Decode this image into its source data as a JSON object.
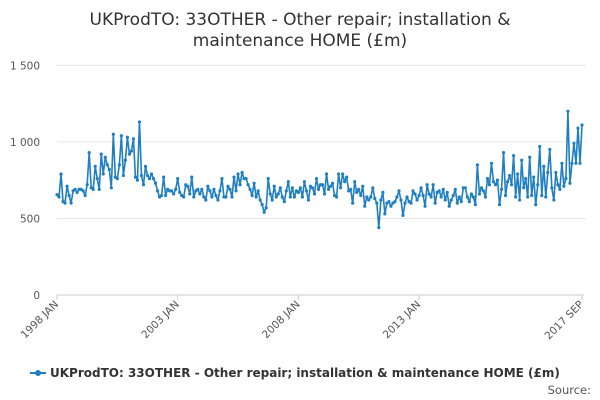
{
  "chart_data": {
    "type": "line",
    "title_lines": [
      "UKProdTO: 33OTHER - Other repair; installation &",
      "maintenance HOME (£m)"
    ],
    "ylim": [
      0,
      1600
    ],
    "yticks": [
      0,
      500,
      1000,
      1500
    ],
    "ytick_labels": [
      "0",
      "500",
      "1 000",
      "1 500"
    ],
    "xtick_labels": [
      "1998 JAN",
      "2003 JAN",
      "2008 JAN",
      "2013 JAN",
      "2017 SEP"
    ],
    "x_start": "1998 JAN",
    "x_end": "2017 SEP",
    "grid": true,
    "legend_position": "bottom",
    "source_label": "Source:",
    "series": [
      {
        "name": "UKProdTO: 33OTHER - Other repair; installation & maintenance HOME (£m)",
        "color": "#1f7fbf",
        "values": [
          655,
          640,
          790,
          610,
          600,
          710,
          650,
          600,
          680,
          690,
          670,
          690,
          690,
          680,
          650,
          720,
          930,
          700,
          690,
          840,
          760,
          690,
          920,
          790,
          900,
          850,
          820,
          700,
          1050,
          770,
          760,
          850,
          1040,
          780,
          880,
          1030,
          920,
          940,
          1020,
          770,
          750,
          1130,
          780,
          720,
          840,
          780,
          760,
          790,
          760,
          730,
          680,
          640,
          650,
          770,
          650,
          690,
          680,
          680,
          660,
          690,
          760,
          670,
          650,
          640,
          720,
          710,
          660,
          770,
          640,
          680,
          690,
          660,
          690,
          640,
          620,
          710,
          680,
          640,
          690,
          650,
          620,
          680,
          760,
          640,
          640,
          710,
          690,
          640,
          770,
          680,
          790,
          720,
          800,
          760,
          760,
          720,
          690,
          650,
          730,
          640,
          680,
          620,
          590,
          540,
          570,
          760,
          660,
          620,
          710,
          640,
          660,
          700,
          640,
          610,
          680,
          740,
          640,
          700,
          640,
          680,
          670,
          700,
          640,
          740,
          680,
          620,
          710,
          700,
          660,
          760,
          690,
          720,
          720,
          660,
          790,
          690,
          710,
          730,
          650,
          640,
          790,
          700,
          790,
          740,
          770,
          680,
          690,
          600,
          740,
          670,
          690,
          650,
          710,
          580,
          640,
          620,
          640,
          700,
          630,
          600,
          440,
          620,
          670,
          530,
          600,
          610,
          580,
          600,
          610,
          640,
          680,
          620,
          520,
          600,
          640,
          610,
          600,
          680,
          660,
          620,
          650,
          700,
          650,
          580,
          720,
          660,
          640,
          720,
          600,
          670,
          680,
          640,
          690,
          620,
          670,
          580,
          620,
          650,
          690,
          600,
          640,
          610,
          700,
          700,
          640,
          610,
          660,
          640,
          590,
          850,
          660,
          700,
          680,
          640,
          760,
          720,
          860,
          740,
          720,
          750,
          590,
          690,
          930,
          650,
          740,
          780,
          720,
          910,
          640,
          790,
          620,
          880,
          700,
          760,
          640,
          900,
          650,
          770,
          590,
          720,
          970,
          650,
          840,
          640,
          800,
          950,
          700,
          620,
          800,
          720,
          690,
          860,
          710,
          760,
          1200,
          730,
          860,
          990,
          860,
          1090,
          860,
          1110
        ]
      }
    ]
  }
}
